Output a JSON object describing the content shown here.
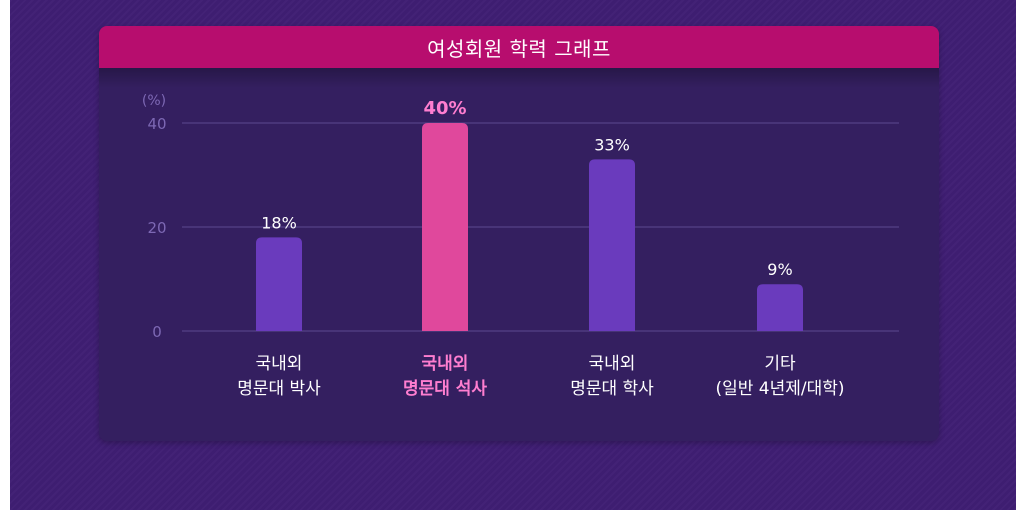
{
  "chart_data": {
    "type": "bar",
    "title": "여성회원 학력 그래프",
    "ylabel": "(%)",
    "ylim": [
      0,
      40
    ],
    "yticks": [
      0,
      20,
      40
    ],
    "grid": true,
    "categories": [
      {
        "lines": [
          "국내외",
          "명문대 박사"
        ],
        "value": 18,
        "label": "18%",
        "highlight": false
      },
      {
        "lines": [
          "국내외",
          "명문대 석사"
        ],
        "value": 40,
        "label": "40%",
        "highlight": true
      },
      {
        "lines": [
          "국내외",
          "명문대 학사"
        ],
        "value": 33,
        "label": "33%",
        "highlight": false
      },
      {
        "lines": [
          "기타",
          "(일반 4년제/대학)"
        ],
        "value": 9,
        "label": "9%",
        "highlight": false
      }
    ],
    "colors": {
      "bar": "#6a3bbd",
      "bar_highlight": "#e0489c",
      "label": "#ffffff",
      "label_highlight": "#ff7ed0",
      "axis_text": "#7d68b4",
      "grid": "#5b4891"
    }
  }
}
